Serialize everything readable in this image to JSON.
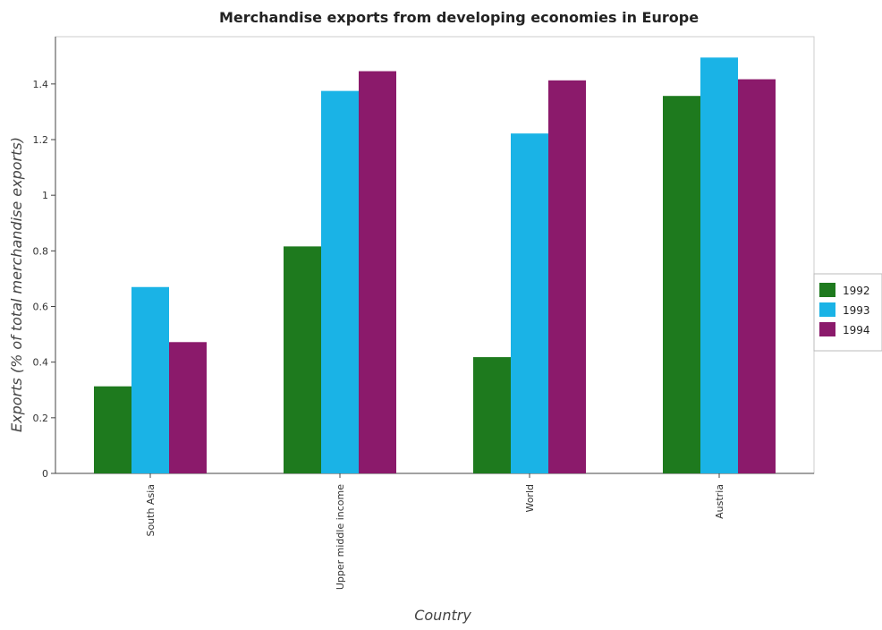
{
  "chart_data": {
    "type": "bar",
    "title": "Merchandise exports from developing economies in Europe",
    "xlabel": "Country",
    "ylabel": "Exports (% of total merchandise exports)",
    "categories": [
      "South Asia",
      "Upper middle income",
      "World",
      "Austria"
    ],
    "series": [
      {
        "name": "1992",
        "color": "#1e7a1e",
        "values": [
          0.313,
          0.816,
          0.418,
          1.357
        ]
      },
      {
        "name": "1993",
        "color": "#1ab3e6",
        "values": [
          0.67,
          1.375,
          1.222,
          1.495
        ]
      },
      {
        "name": "1994",
        "color": "#8b1a6b",
        "values": [
          0.472,
          1.446,
          1.413,
          1.417
        ]
      }
    ],
    "ylim": [
      0,
      1.57
    ],
    "yticks": [
      0,
      0.2,
      0.4,
      0.6,
      0.8,
      1,
      1.2,
      1.4
    ],
    "ytick_labels": [
      "0",
      "0.2",
      "0.4",
      "0.6",
      "0.8",
      "1",
      "1.2",
      "1.4"
    ],
    "grid": false,
    "legend_position": "right"
  }
}
